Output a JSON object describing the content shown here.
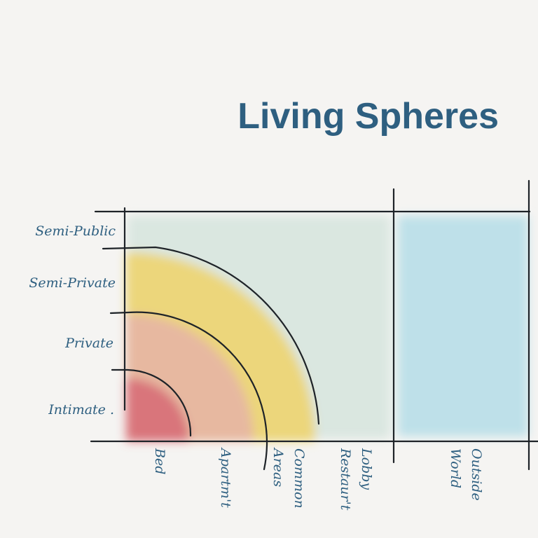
{
  "title": "Living Spheres",
  "y_labels": [
    "Semi-Public",
    "Semi-Private",
    "Private",
    "Intimate ."
  ],
  "x_labels": [
    [
      "Bed"
    ],
    [
      "Apartm't"
    ],
    [
      "Common",
      "Areas"
    ],
    [
      "Lobby",
      "Restaur't"
    ],
    [
      "Outside",
      "World"
    ]
  ]
}
